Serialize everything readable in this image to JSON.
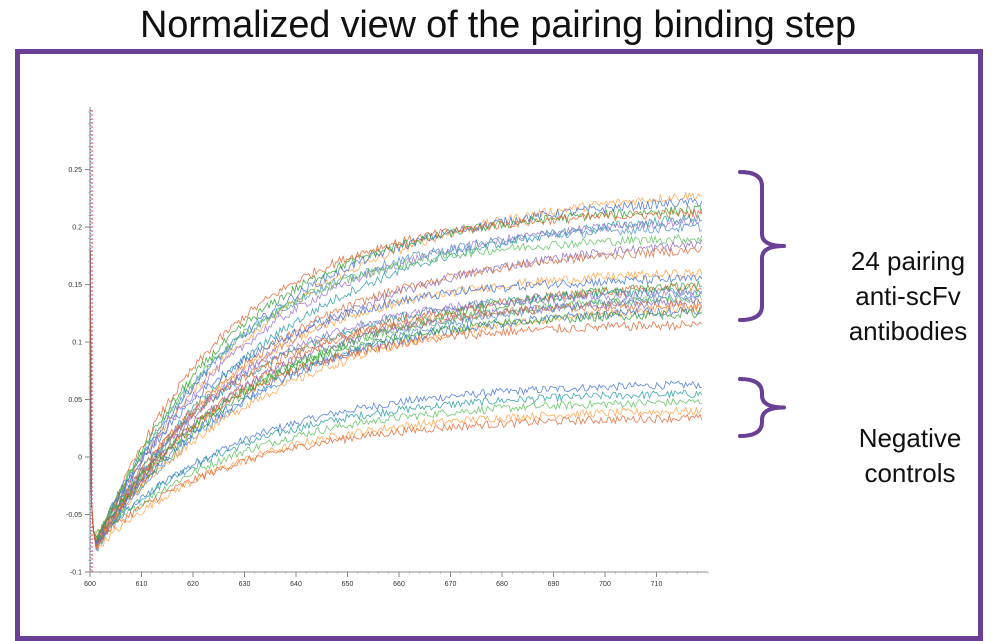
{
  "title": "Normalized view of the pairing binding step",
  "colors": {
    "frame": "#6a3f96",
    "bracket": "#6a3f96",
    "marker_line": "#ff3b3b",
    "palette": [
      "#ff9f40",
      "#3d6fd6",
      "#2ca02c",
      "#e0602a",
      "#1f9a9a",
      "#9a6fd6",
      "#4a90c9",
      "#55c055",
      "#8a64c4",
      "#d46b3a"
    ]
  },
  "annotations": {
    "pairing": [
      "24 pairing",
      "anti-scFv",
      "antibodies"
    ],
    "negative": [
      "Negative",
      "controls"
    ]
  },
  "chart_data": {
    "type": "line",
    "xlim": [
      600,
      720
    ],
    "ylim": [
      -0.1,
      0.3
    ],
    "x_ticks": [
      600,
      610,
      620,
      630,
      640,
      650,
      660,
      670,
      680,
      690,
      700,
      710
    ],
    "y_ticks": [
      -0.1,
      -0.05,
      0,
      0.05,
      0.1,
      0.15,
      0.2,
      0.25
    ],
    "y_tick_labels": [
      "-0.1",
      "-0.05",
      "0",
      "0.05",
      "0.1",
      "0.15",
      "0.2",
      "0.25"
    ],
    "grid": false,
    "dip_x": 601.2,
    "dip_y": -0.075,
    "pairing_end_values": [
      0.228,
      0.222,
      0.215,
      0.212,
      0.208,
      0.205,
      0.2,
      0.19,
      0.185,
      0.18,
      0.16,
      0.155,
      0.15,
      0.148,
      0.145,
      0.142,
      0.14,
      0.138,
      0.135,
      0.133,
      0.13,
      0.128,
      0.125,
      0.115
    ],
    "negative_end_values": [
      0.063,
      0.055,
      0.048,
      0.04,
      0.034
    ]
  }
}
